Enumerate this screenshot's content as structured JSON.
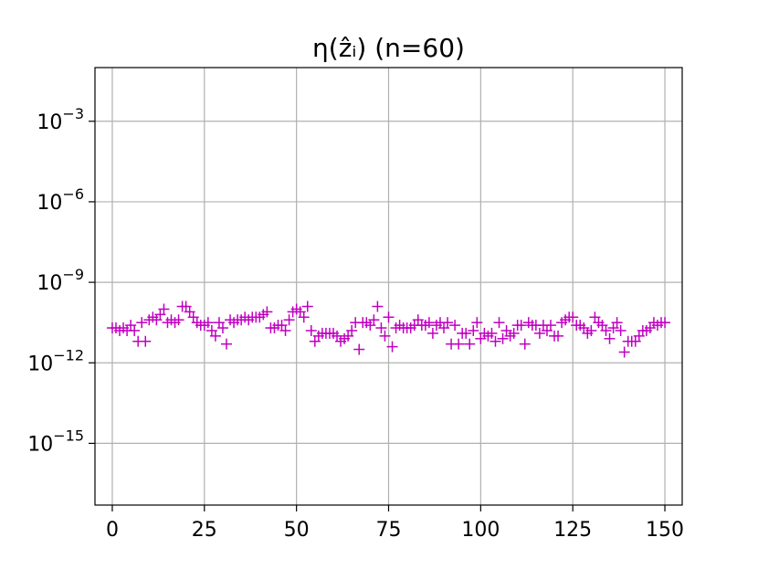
{
  "chart_data": {
    "type": "scatter",
    "title": "η(ẑᵢ) (n=60)",
    "marker": "+",
    "color": "#c000c0",
    "grid": true,
    "xlabel": "",
    "ylabel": "",
    "xlim": [
      -4.7,
      154.7
    ],
    "ylim_log10": [
      -17.3,
      -1.0
    ],
    "y_scale": "log",
    "x_ticks": [
      0,
      25,
      50,
      75,
      100,
      125,
      150
    ],
    "x_tick_labels": [
      "0",
      "25",
      "50",
      "75",
      "100",
      "125",
      "150"
    ],
    "y_ticks_log10": [
      -3,
      -6,
      -9,
      -12,
      -15
    ],
    "y_tick_labels": [
      {
        "base": "10",
        "exp": "−3"
      },
      {
        "base": "10",
        "exp": "−6"
      },
      {
        "base": "10",
        "exp": "−9"
      },
      {
        "base": "10",
        "exp": "−12"
      },
      {
        "base": "10",
        "exp": "−15"
      }
    ],
    "x": [
      0,
      1,
      2,
      3,
      4,
      5,
      6,
      7,
      8,
      9,
      10,
      11,
      12,
      13,
      14,
      15,
      16,
      17,
      18,
      19,
      20,
      21,
      22,
      23,
      24,
      25,
      26,
      27,
      28,
      29,
      30,
      31,
      32,
      33,
      34,
      35,
      36,
      37,
      38,
      39,
      40,
      41,
      42,
      43,
      44,
      45,
      46,
      47,
      48,
      49,
      50,
      51,
      52,
      53,
      54,
      55,
      56,
      57,
      58,
      59,
      60,
      61,
      62,
      63,
      64,
      65,
      66,
      67,
      68,
      69,
      70,
      71,
      72,
      73,
      74,
      75,
      76,
      77,
      78,
      79,
      80,
      81,
      82,
      83,
      84,
      85,
      86,
      87,
      88,
      89,
      90,
      91,
      92,
      93,
      94,
      95,
      96,
      97,
      98,
      99,
      100,
      101,
      102,
      103,
      104,
      105,
      106,
      107,
      108,
      109,
      110,
      111,
      112,
      113,
      114,
      115,
      116,
      117,
      118,
      119,
      120,
      121,
      122,
      123,
      124,
      125,
      126,
      127,
      128,
      129,
      130,
      131,
      132,
      133,
      134,
      135,
      136,
      137,
      138,
      139,
      140,
      141,
      142,
      143,
      144,
      145,
      146,
      147,
      148,
      149,
      150
    ],
    "y_log10": [
      -10.7,
      -10.7,
      -10.8,
      -10.7,
      -10.8,
      -10.6,
      -10.8,
      -11.2,
      -10.5,
      -11.2,
      -10.4,
      -10.3,
      -10.4,
      -10.2,
      -10.0,
      -10.5,
      -10.4,
      -10.5,
      -10.4,
      -9.9,
      -9.9,
      -10.1,
      -10.3,
      -10.5,
      -10.6,
      -10.6,
      -10.5,
      -10.8,
      -11.0,
      -10.5,
      -10.7,
      -11.3,
      -10.4,
      -10.5,
      -10.4,
      -10.4,
      -10.3,
      -10.4,
      -10.3,
      -10.3,
      -10.3,
      -10.2,
      -10.1,
      -10.7,
      -10.7,
      -10.6,
      -10.6,
      -10.8,
      -10.4,
      -10.1,
      -10.0,
      -10.1,
      -10.3,
      -9.9,
      -10.8,
      -11.2,
      -11.0,
      -10.9,
      -10.9,
      -10.9,
      -10.9,
      -11.0,
      -11.2,
      -11.1,
      -11.0,
      -10.8,
      -10.5,
      -11.5,
      -10.5,
      -10.5,
      -10.6,
      -10.4,
      -9.9,
      -10.7,
      -11.0,
      -10.3,
      -11.4,
      -10.7,
      -10.6,
      -10.7,
      -10.7,
      -10.7,
      -10.6,
      -10.4,
      -10.6,
      -10.6,
      -10.5,
      -10.9,
      -10.6,
      -10.5,
      -10.7,
      -10.5,
      -11.3,
      -10.6,
      -11.3,
      -10.9,
      -10.9,
      -11.3,
      -10.8,
      -10.5,
      -11.1,
      -10.9,
      -11.0,
      -10.9,
      -11.2,
      -10.5,
      -11.1,
      -10.8,
      -11.0,
      -10.9,
      -10.6,
      -10.6,
      -11.3,
      -10.5,
      -10.6,
      -10.6,
      -10.9,
      -10.6,
      -10.8,
      -10.6,
      -11.0,
      -11.0,
      -10.5,
      -10.4,
      -10.3,
      -10.3,
      -10.6,
      -10.6,
      -10.7,
      -10.9,
      -10.8,
      -10.3,
      -10.5,
      -10.6,
      -10.8,
      -11.1,
      -10.7,
      -10.5,
      -10.8,
      -11.6,
      -11.2,
      -11.2,
      -11.2,
      -11.0,
      -10.8,
      -10.8,
      -10.7,
      -10.5,
      -10.6,
      -10.5,
      -10.5
    ]
  }
}
